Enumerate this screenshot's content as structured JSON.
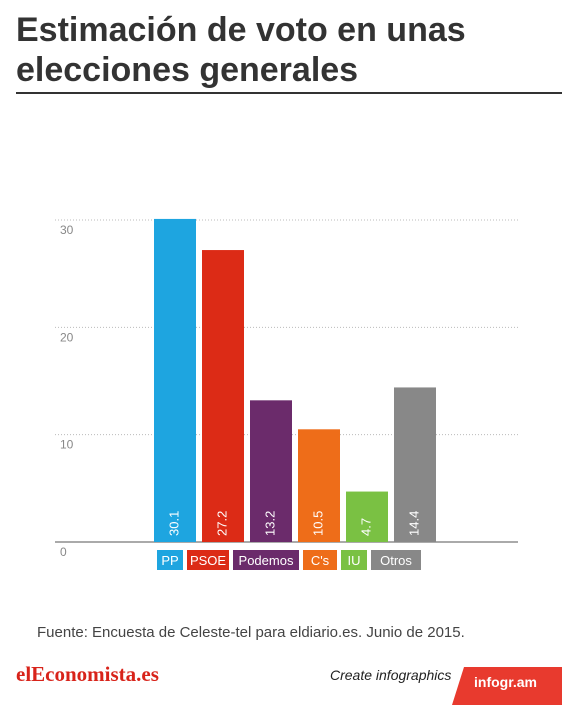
{
  "page": {
    "source_note": "Fuente: Encuesta de  Celeste-tel para eldiario.es. Junio de 2015.",
    "brand": "elEconomista.es",
    "create_label": "Create infographics",
    "badge_label": "infogr.am"
  },
  "colors": {
    "brand": "#d8231a",
    "badge": "#e83a2e"
  },
  "chart_data": {
    "type": "bar",
    "title": "Estimación de voto en unas elecciones generales",
    "categories": [
      "PP",
      "PSOE",
      "Podemos",
      "C's",
      "IU",
      "Otros"
    ],
    "values": [
      30.1,
      27.2,
      13.2,
      10.5,
      4.7,
      14.4
    ],
    "value_labels": [
      "30.1",
      "27.2",
      "13.2",
      "10.5",
      "4.7",
      "14.4"
    ],
    "colors": [
      "#1ea5e0",
      "#dc2b16",
      "#6b2b6b",
      "#ee6d19",
      "#7ac143",
      "#888888"
    ],
    "ylim": [
      0,
      30
    ],
    "yticks": [
      "0",
      "10",
      "20",
      "30"
    ],
    "grid": true,
    "legend": "below"
  }
}
